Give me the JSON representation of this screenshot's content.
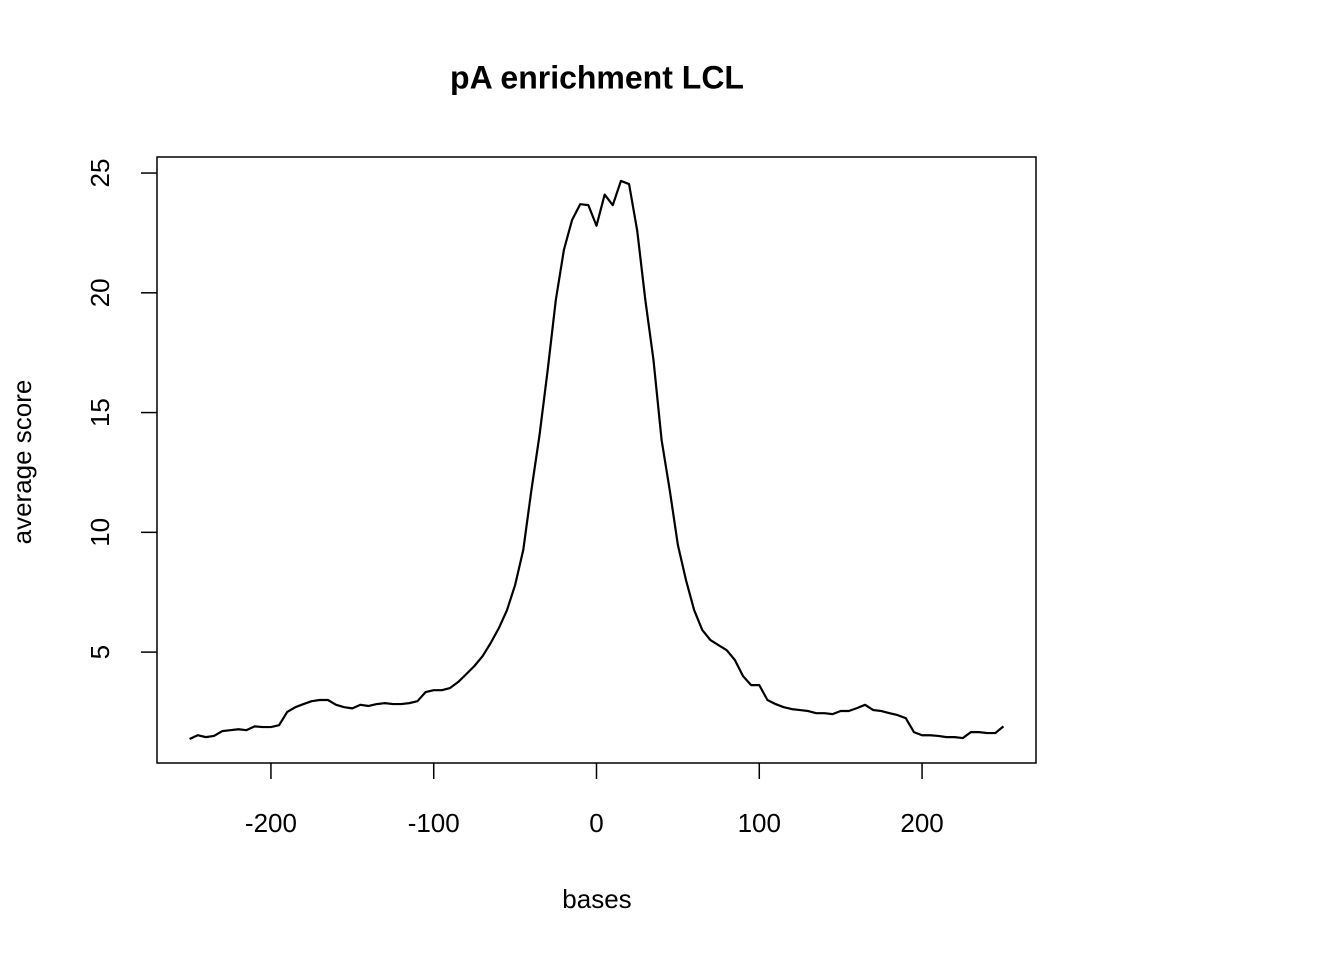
{
  "chart_data": {
    "type": "line",
    "title": "pA enrichment LCL",
    "xlabel": "bases",
    "ylabel": "average score",
    "x": [
      -250,
      -245,
      -240,
      -235,
      -230,
      -225,
      -220,
      -215,
      -210,
      -205,
      -200,
      -195,
      -190,
      -185,
      -180,
      -175,
      -170,
      -165,
      -160,
      -155,
      -150,
      -145,
      -140,
      -135,
      -130,
      -125,
      -120,
      -115,
      -110,
      -105,
      -100,
      -95,
      -90,
      -85,
      -80,
      -75,
      -70,
      -65,
      -60,
      -55,
      -50,
      -45,
      -40,
      -35,
      -30,
      -25,
      -20,
      -15,
      -10,
      -5,
      0,
      5,
      10,
      15,
      20,
      25,
      30,
      35,
      40,
      45,
      50,
      55,
      60,
      65,
      70,
      75,
      80,
      85,
      90,
      95,
      100,
      105,
      110,
      115,
      120,
      125,
      130,
      135,
      140,
      145,
      150,
      155,
      160,
      165,
      170,
      175,
      180,
      185,
      190,
      195,
      200,
      205,
      210,
      215,
      220,
      225,
      230,
      235,
      240,
      245,
      250
    ],
    "values": [
      1.37,
      1.53,
      1.45,
      1.5,
      1.7,
      1.74,
      1.78,
      1.74,
      1.9,
      1.87,
      1.87,
      1.95,
      2.5,
      2.7,
      2.83,
      2.95,
      3.0,
      3.0,
      2.8,
      2.7,
      2.65,
      2.8,
      2.75,
      2.83,
      2.87,
      2.83,
      2.83,
      2.87,
      2.95,
      3.33,
      3.41,
      3.41,
      3.5,
      3.75,
      4.08,
      4.42,
      4.83,
      5.38,
      6.0,
      6.75,
      7.8,
      9.26,
      11.76,
      14.06,
      16.77,
      19.7,
      21.8,
      23.04,
      23.7,
      23.66,
      22.8,
      24.1,
      23.66,
      24.67,
      24.54,
      22.6,
      19.7,
      17.2,
      13.85,
      11.76,
      9.47,
      8.0,
      6.75,
      5.92,
      5.5,
      5.29,
      5.08,
      4.67,
      4.0,
      3.62,
      3.62,
      3.0,
      2.83,
      2.7,
      2.62,
      2.58,
      2.54,
      2.45,
      2.45,
      2.41,
      2.54,
      2.54,
      2.66,
      2.8,
      2.58,
      2.54,
      2.45,
      2.37,
      2.24,
      1.66,
      1.53,
      1.53,
      1.5,
      1.45,
      1.45,
      1.41,
      1.66,
      1.66,
      1.62,
      1.62,
      1.9
    ],
    "color": "#000000",
    "xlim": [
      -270,
      270
    ],
    "xticks": [
      -200,
      -100,
      0,
      100,
      200
    ],
    "ylim": [
      0.37,
      25.67
    ],
    "yticks": [
      5,
      10,
      15,
      20,
      25
    ],
    "grid": false
  }
}
